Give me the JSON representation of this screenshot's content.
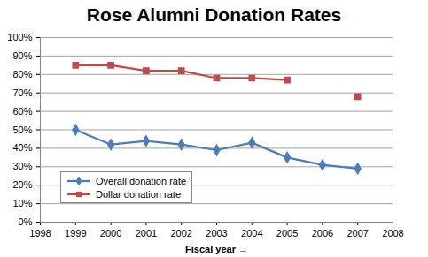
{
  "chart_data": {
    "type": "line",
    "title": "Rose Alumni Donation Rates",
    "x_label": "Fiscal year",
    "x": [
      1999,
      2000,
      2001,
      2002,
      2003,
      2004,
      2005,
      2006,
      2007
    ],
    "series": [
      {
        "name": "Overall donation rate",
        "color": "#4a7ebb",
        "marker": "diamond",
        "values": [
          50,
          42,
          44,
          42,
          39,
          43,
          35,
          31,
          29
        ]
      },
      {
        "name": "Dollar donation rate",
        "color": "#be4b48",
        "marker": "square",
        "values": [
          85,
          85,
          82,
          82,
          78,
          78,
          77,
          null,
          68
        ]
      }
    ],
    "xlim": [
      1998,
      2008
    ],
    "xticks": [
      1998,
      1999,
      2000,
      2001,
      2002,
      2003,
      2004,
      2005,
      2006,
      2007,
      2008
    ],
    "ylim": [
      0,
      100
    ],
    "yticks": [
      {
        "value": 0,
        "label": "0%"
      },
      {
        "value": 10,
        "label": "10%"
      },
      {
        "value": 20,
        "label": "20%"
      },
      {
        "value": 30,
        "label": "30%"
      },
      {
        "value": 40,
        "label": "40%"
      },
      {
        "value": 50,
        "label": "50%"
      },
      {
        "value": 60,
        "label": "60%"
      },
      {
        "value": 70,
        "label": "70%"
      },
      {
        "value": 80,
        "label": "80%"
      },
      {
        "value": 90,
        "label": "90%"
      },
      {
        "value": 100,
        "label": "100%"
      }
    ],
    "grid": true,
    "legend": "lower left"
  }
}
